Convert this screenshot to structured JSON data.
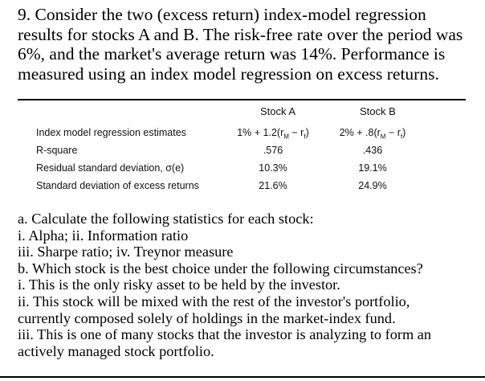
{
  "intro": {
    "lines": [
      "9. Consider the two (excess return) index-model regression",
      "results for stocks A and B. The risk-free rate over the period was",
      "6%, and the market's average return was 14%. Performance is",
      "measured using an index model regression on excess returns."
    ]
  },
  "table": {
    "col_a": "Stock A",
    "col_b": "Stock B",
    "rows": [
      {
        "label": "Index model regression estimates",
        "a": "1% + 1.2(rₘ − rf)",
        "b": "2% + .8(rₘ − rf)"
      },
      {
        "label": "R-square",
        "a": ".576",
        "b": ".436"
      },
      {
        "label": "Residual standard deviation, σ(e)",
        "a": "10.3%",
        "b": "19.1%"
      },
      {
        "label": "Standard deviation of excess returns",
        "a": "21.6%",
        "b": "24.9%"
      }
    ]
  },
  "questions": {
    "lines": [
      "a. Calculate the following statistics for each stock:",
      "i. Alpha;   ii. Information ratio",
      "iii. Sharpe ratio;   iv. Treynor measure",
      "b. Which stock is the best choice under the following circumstances?",
      "i. This is the only risky asset to be held by the investor.",
      "ii. This stock will be mixed with the rest of the investor's portfolio,",
      "currently composed solely of holdings in the market-index fund.",
      "iii. This is one of many stocks that the investor is analyzing to form an",
      "actively managed stock portfolio."
    ]
  }
}
